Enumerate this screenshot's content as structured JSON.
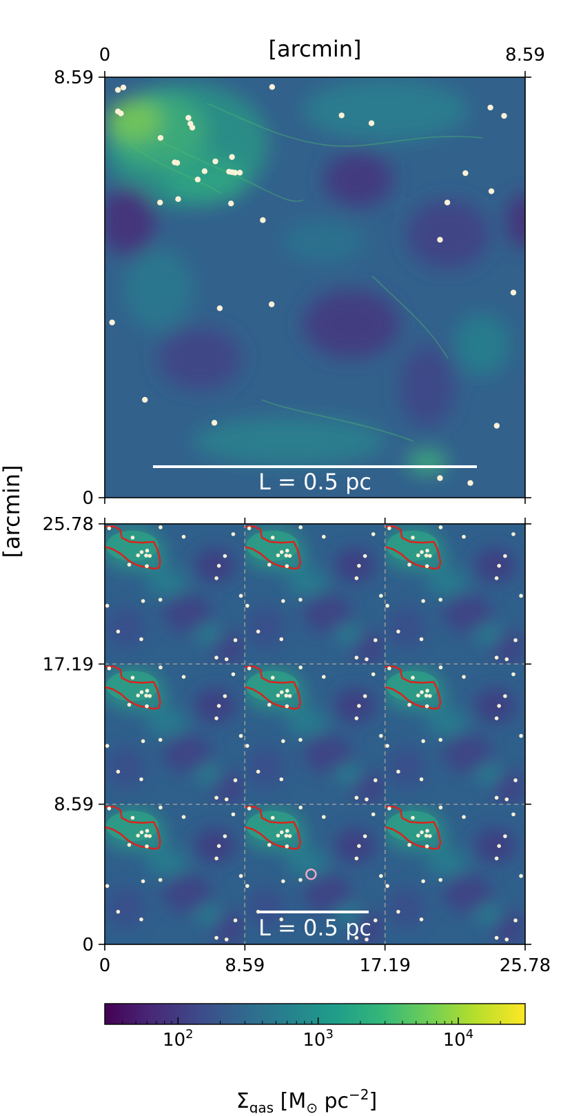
{
  "chart_data": [
    {
      "type": "heatmap",
      "panel": "top",
      "xlabel": "[arcmin]",
      "ylabel": "[arcmin]",
      "xlim": [
        0,
        8.59
      ],
      "ylim": [
        0,
        8.59
      ],
      "x_ticks": [
        "0",
        "8.59"
      ],
      "y_ticks": [
        "0",
        "8.59"
      ],
      "scalebar_label": "L = 0.5 pc",
      "scalebar_length_pc": 0.5,
      "star_points": [
        {
          "x": 0.27,
          "y": 8.33
        },
        {
          "x": 0.38,
          "y": 8.38
        },
        {
          "x": 0.27,
          "y": 7.89
        },
        {
          "x": 0.33,
          "y": 7.85
        },
        {
          "x": 1.71,
          "y": 7.76
        },
        {
          "x": 1.75,
          "y": 7.64
        },
        {
          "x": 1.79,
          "y": 7.56
        },
        {
          "x": 1.14,
          "y": 7.35
        },
        {
          "x": 1.43,
          "y": 6.85
        },
        {
          "x": 1.48,
          "y": 6.84
        },
        {
          "x": 2.26,
          "y": 6.87
        },
        {
          "x": 2.6,
          "y": 6.96
        },
        {
          "x": 2.04,
          "y": 6.67
        },
        {
          "x": 2.54,
          "y": 6.66
        },
        {
          "x": 2.6,
          "y": 6.65
        },
        {
          "x": 2.66,
          "y": 6.64
        },
        {
          "x": 2.76,
          "y": 6.64
        },
        {
          "x": 1.9,
          "y": 6.5
        },
        {
          "x": 1.5,
          "y": 6.1
        },
        {
          "x": 1.13,
          "y": 6.03
        },
        {
          "x": 2.58,
          "y": 6.01
        },
        {
          "x": 3.23,
          "y": 5.67
        },
        {
          "x": 3.42,
          "y": 8.39
        },
        {
          "x": 4.84,
          "y": 7.81
        },
        {
          "x": 5.45,
          "y": 7.65
        },
        {
          "x": 7.88,
          "y": 7.97
        },
        {
          "x": 8.16,
          "y": 7.8
        },
        {
          "x": 7.37,
          "y": 6.63
        },
        {
          "x": 7.9,
          "y": 6.26
        },
        {
          "x": 7.0,
          "y": 6.03
        },
        {
          "x": 6.85,
          "y": 5.27
        },
        {
          "x": 3.41,
          "y": 3.95
        },
        {
          "x": 2.35,
          "y": 3.87
        },
        {
          "x": 0.15,
          "y": 3.58
        },
        {
          "x": 8.35,
          "y": 4.19
        },
        {
          "x": 0.82,
          "y": 2.0
        },
        {
          "x": 2.24,
          "y": 1.53
        },
        {
          "x": 8.01,
          "y": 1.47
        },
        {
          "x": 6.85,
          "y": 0.4
        },
        {
          "x": 7.47,
          "y": 0.3
        }
      ]
    },
    {
      "type": "heatmap",
      "panel": "bottom",
      "xlabel": "",
      "ylabel": "[arcmin]",
      "xlim": [
        0,
        25.78
      ],
      "ylim": [
        0,
        25.78
      ],
      "x_ticks": [
        "0",
        "8.59",
        "17.19",
        "25.78"
      ],
      "y_ticks": [
        "0",
        "8.59",
        "17.19",
        "25.78"
      ],
      "tile_size": 8.59,
      "tiles": 3,
      "dashed_grid_lines": [
        8.59,
        17.19
      ],
      "scalebar_label": "L = 0.5 pc",
      "scalebar_length_pc": 0.5,
      "contour_color": "#d9241c",
      "marker_circle": {
        "x": 12.65,
        "y": 4.3,
        "color": "#f0a8c8"
      },
      "tile_star_points": [
        {
          "x": 0.27,
          "y": 8.33
        },
        {
          "x": 1.71,
          "y": 7.76
        },
        {
          "x": 2.6,
          "y": 6.96
        },
        {
          "x": 2.04,
          "y": 6.67
        },
        {
          "x": 2.54,
          "y": 6.66
        },
        {
          "x": 2.76,
          "y": 6.64
        },
        {
          "x": 1.5,
          "y": 6.1
        },
        {
          "x": 2.58,
          "y": 6.01
        },
        {
          "x": 3.42,
          "y": 8.39
        },
        {
          "x": 4.84,
          "y": 7.81
        },
        {
          "x": 7.88,
          "y": 7.97
        },
        {
          "x": 7.37,
          "y": 6.63
        },
        {
          "x": 7.0,
          "y": 6.03
        },
        {
          "x": 6.85,
          "y": 5.27
        },
        {
          "x": 3.41,
          "y": 3.95
        },
        {
          "x": 2.35,
          "y": 3.87
        },
        {
          "x": 0.15,
          "y": 3.58
        },
        {
          "x": 8.35,
          "y": 4.19
        },
        {
          "x": 0.82,
          "y": 2.0
        },
        {
          "x": 2.24,
          "y": 1.53
        },
        {
          "x": 8.01,
          "y": 1.47
        },
        {
          "x": 6.85,
          "y": 0.4
        },
        {
          "x": 7.47,
          "y": 0.3
        },
        {
          "x": 2.26,
          "y": 6.87
        }
      ]
    }
  ],
  "colorbar": {
    "label": "Σgas [M⊙pc⁻²]",
    "label_main": "Σ",
    "label_sub": "gas",
    "label_unit": " [M",
    "label_sun_sub": "⊙",
    "label_pc": " pc",
    "label_exp": "−2",
    "label_close": "]",
    "scale": "log",
    "range": [
      30,
      30000
    ],
    "major_ticks": [
      {
        "value": 100,
        "base": "10",
        "exp": "2"
      },
      {
        "value": 1000,
        "base": "10",
        "exp": "3"
      },
      {
        "value": 10000,
        "base": "10",
        "exp": "4"
      }
    ],
    "colormap": [
      "#440154",
      "#482878",
      "#3e4989",
      "#31688e",
      "#26828e",
      "#1f9e89",
      "#35b779",
      "#6ece58",
      "#b5de2b",
      "#fde725"
    ]
  }
}
